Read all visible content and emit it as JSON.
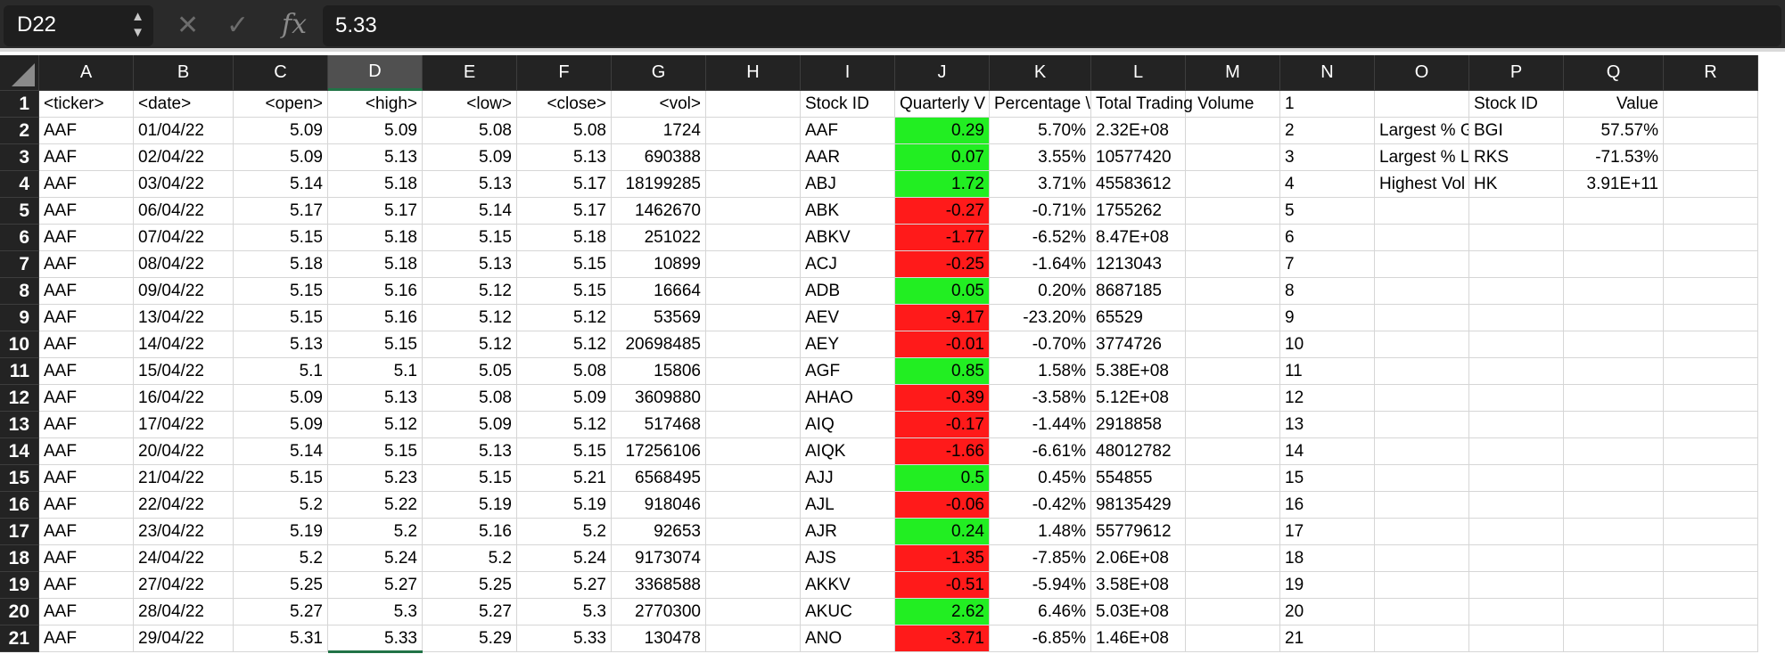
{
  "formula_bar": {
    "name_box": "D22",
    "cancel_icon": "✕",
    "enter_icon": "✓",
    "fx_label": "fx",
    "formula": "5.33"
  },
  "columns": [
    "A",
    "B",
    "C",
    "D",
    "E",
    "F",
    "G",
    "H",
    "I",
    "J",
    "K",
    "L",
    "M",
    "N",
    "O",
    "P",
    "Q",
    "R"
  ],
  "selected_column": "D",
  "active_cell": "D22",
  "colors": {
    "positive": "#22ee22",
    "negative": "#ff1a1a",
    "selection": "#217346",
    "header_bg": "#232323"
  },
  "rows": [
    {
      "n": "1",
      "a": "<ticker>",
      "b": "<date>",
      "c": "<open>",
      "d": "<high>",
      "e": "<low>",
      "f": "<close>",
      "g": "<vol>",
      "i": "Stock ID",
      "j": "Quarterly V",
      "k": "Percentage \\",
      "l": "Total Trading Volume",
      "o": "",
      "p": "Stock ID",
      "q": "Value"
    },
    {
      "n": "2",
      "a": "AAF",
      "b": "01/04/22",
      "c": "5.09",
      "d": "5.09",
      "e": "5.08",
      "f": "5.08",
      "g": "1724",
      "i": "AAF",
      "j": "0.29",
      "k": "5.70%",
      "l": "2.32E+08",
      "o": "Largest % G",
      "p": "BGI",
      "q": "57.57%"
    },
    {
      "n": "3",
      "a": "AAF",
      "b": "02/04/22",
      "c": "5.09",
      "d": "5.13",
      "e": "5.09",
      "f": "5.13",
      "g": "690388",
      "i": "AAR",
      "j": "0.07",
      "k": "3.55%",
      "l": "10577420",
      "o": "Largest % L",
      "p": "RKS",
      "q": "-71.53%"
    },
    {
      "n": "4",
      "a": "AAF",
      "b": "03/04/22",
      "c": "5.14",
      "d": "5.18",
      "e": "5.13",
      "f": "5.17",
      "g": "18199285",
      "i": "ABJ",
      "j": "1.72",
      "k": "3.71%",
      "l": "45583612",
      "o": "Highest Vol",
      "p": "HK",
      "q": "3.91E+11"
    },
    {
      "n": "5",
      "a": "AAF",
      "b": "06/04/22",
      "c": "5.17",
      "d": "5.17",
      "e": "5.14",
      "f": "5.17",
      "g": "1462670",
      "i": "ABK",
      "j": "-0.27",
      "k": "-0.71%",
      "l": "1755262",
      "o": "",
      "p": "",
      "q": ""
    },
    {
      "n": "6",
      "a": "AAF",
      "b": "07/04/22",
      "c": "5.15",
      "d": "5.18",
      "e": "5.15",
      "f": "5.18",
      "g": "251022",
      "i": "ABKV",
      "j": "-1.77",
      "k": "-6.52%",
      "l": "8.47E+08",
      "o": "",
      "p": "",
      "q": ""
    },
    {
      "n": "7",
      "a": "AAF",
      "b": "08/04/22",
      "c": "5.18",
      "d": "5.18",
      "e": "5.13",
      "f": "5.15",
      "g": "10899",
      "i": "ACJ",
      "j": "-0.25",
      "k": "-1.64%",
      "l": "1213043",
      "o": "",
      "p": "",
      "q": ""
    },
    {
      "n": "8",
      "a": "AAF",
      "b": "09/04/22",
      "c": "5.15",
      "d": "5.16",
      "e": "5.12",
      "f": "5.15",
      "g": "16664",
      "i": "ADB",
      "j": "0.05",
      "k": "0.20%",
      "l": "8687185",
      "o": "",
      "p": "",
      "q": ""
    },
    {
      "n": "9",
      "a": "AAF",
      "b": "13/04/22",
      "c": "5.15",
      "d": "5.16",
      "e": "5.12",
      "f": "5.12",
      "g": "53569",
      "i": "AEV",
      "j": "-9.17",
      "k": "-23.20%",
      "l": "65529",
      "o": "",
      "p": "",
      "q": ""
    },
    {
      "n": "10",
      "a": "AAF",
      "b": "14/04/22",
      "c": "5.13",
      "d": "5.15",
      "e": "5.12",
      "f": "5.12",
      "g": "20698485",
      "i": "AEY",
      "j": "-0.01",
      "k": "-0.70%",
      "l": "3774726",
      "o": "",
      "p": "",
      "q": ""
    },
    {
      "n": "11",
      "a": "AAF",
      "b": "15/04/22",
      "c": "5.1",
      "d": "5.1",
      "e": "5.05",
      "f": "5.08",
      "g": "15806",
      "i": "AGF",
      "j": "0.85",
      "k": "1.58%",
      "l": "5.38E+08",
      "o": "",
      "p": "",
      "q": ""
    },
    {
      "n": "12",
      "a": "AAF",
      "b": "16/04/22",
      "c": "5.09",
      "d": "5.13",
      "e": "5.08",
      "f": "5.09",
      "g": "3609880",
      "i": "AHAO",
      "j": "-0.39",
      "k": "-3.58%",
      "l": "5.12E+08",
      "o": "",
      "p": "",
      "q": ""
    },
    {
      "n": "13",
      "a": "AAF",
      "b": "17/04/22",
      "c": "5.09",
      "d": "5.12",
      "e": "5.09",
      "f": "5.12",
      "g": "517468",
      "i": "AIQ",
      "j": "-0.17",
      "k": "-1.44%",
      "l": "2918858",
      "o": "",
      "p": "",
      "q": ""
    },
    {
      "n": "14",
      "a": "AAF",
      "b": "20/04/22",
      "c": "5.14",
      "d": "5.15",
      "e": "5.13",
      "f": "5.15",
      "g": "17256106",
      "i": "AIQK",
      "j": "-1.66",
      "k": "-6.61%",
      "l": "48012782",
      "o": "",
      "p": "",
      "q": ""
    },
    {
      "n": "15",
      "a": "AAF",
      "b": "21/04/22",
      "c": "5.15",
      "d": "5.23",
      "e": "5.15",
      "f": "5.21",
      "g": "6568495",
      "i": "AJJ",
      "j": "0.5",
      "k": "0.45%",
      "l": "554855",
      "o": "",
      "p": "",
      "q": ""
    },
    {
      "n": "16",
      "a": "AAF",
      "b": "22/04/22",
      "c": "5.2",
      "d": "5.22",
      "e": "5.19",
      "f": "5.19",
      "g": "918046",
      "i": "AJL",
      "j": "-0.06",
      "k": "-0.42%",
      "l": "98135429",
      "o": "",
      "p": "",
      "q": ""
    },
    {
      "n": "17",
      "a": "AAF",
      "b": "23/04/22",
      "c": "5.19",
      "d": "5.2",
      "e": "5.16",
      "f": "5.2",
      "g": "92653",
      "i": "AJR",
      "j": "0.24",
      "k": "1.48%",
      "l": "55779612",
      "o": "",
      "p": "",
      "q": ""
    },
    {
      "n": "18",
      "a": "AAF",
      "b": "24/04/22",
      "c": "5.2",
      "d": "5.24",
      "e": "5.2",
      "f": "5.24",
      "g": "9173074",
      "i": "AJS",
      "j": "-1.35",
      "k": "-7.85%",
      "l": "2.06E+08",
      "o": "",
      "p": "",
      "q": ""
    },
    {
      "n": "19",
      "a": "AAF",
      "b": "27/04/22",
      "c": "5.25",
      "d": "5.27",
      "e": "5.25",
      "f": "5.27",
      "g": "3368588",
      "i": "AKKV",
      "j": "-0.51",
      "k": "-5.94%",
      "l": "3.58E+08",
      "o": "",
      "p": "",
      "q": ""
    },
    {
      "n": "20",
      "a": "AAF",
      "b": "28/04/22",
      "c": "5.27",
      "d": "5.3",
      "e": "5.27",
      "f": "5.3",
      "g": "2770300",
      "i": "AKUC",
      "j": "2.62",
      "k": "6.46%",
      "l": "5.03E+08",
      "o": "",
      "p": "",
      "q": ""
    },
    {
      "n": "21",
      "a": "AAF",
      "b": "29/04/22",
      "c": "5.31",
      "d": "5.33",
      "e": "5.29",
      "f": "5.33",
      "g": "130478",
      "i": "ANO",
      "j": "-3.71",
      "k": "-6.85%",
      "l": "1.46E+08",
      "o": "",
      "p": "",
      "q": ""
    }
  ]
}
